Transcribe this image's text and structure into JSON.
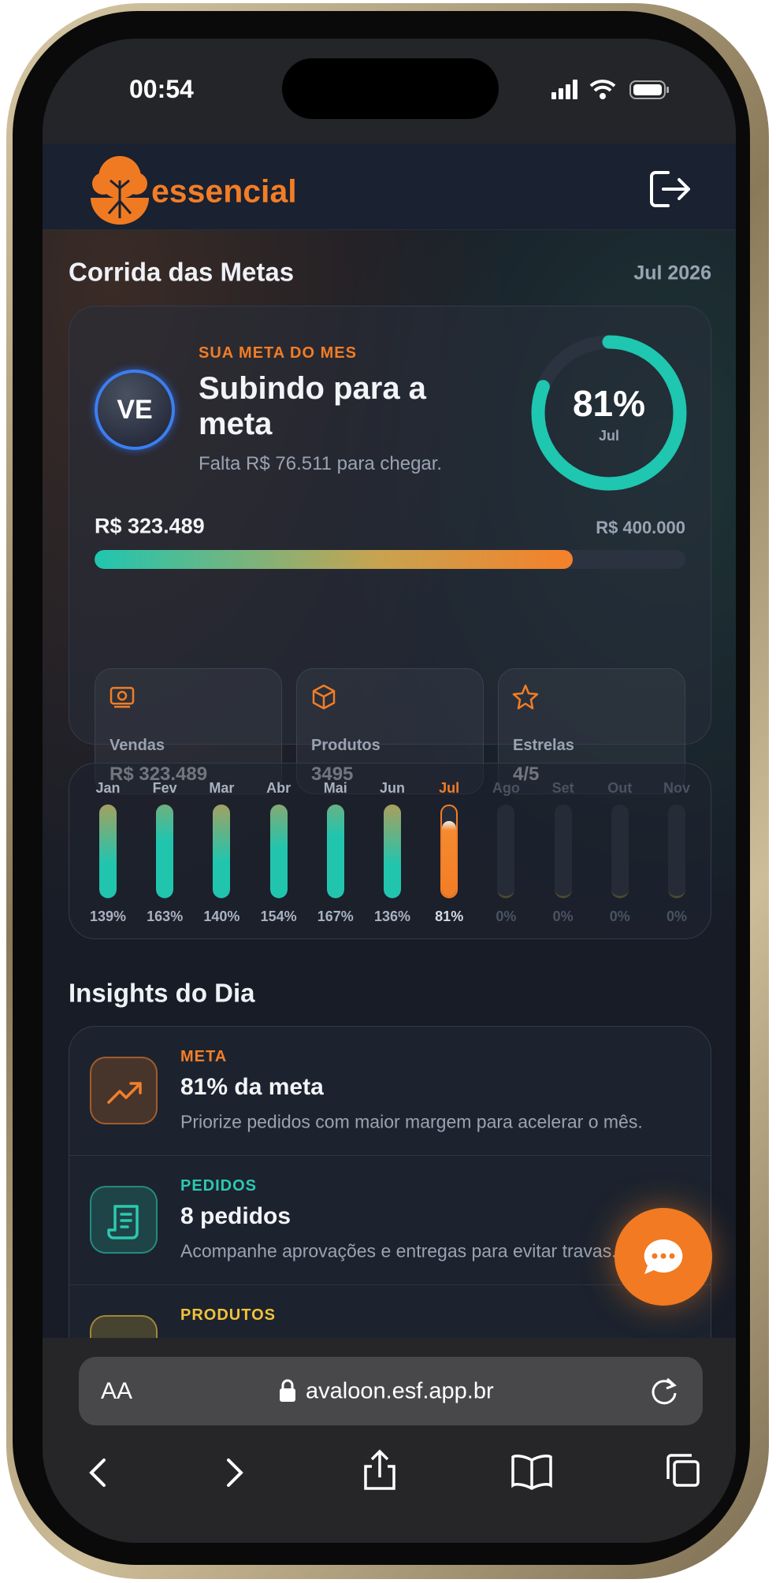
{
  "status_bar": {
    "time": "00:54"
  },
  "header": {
    "brand": "essencial"
  },
  "section": {
    "title": "Corrida das Metas",
    "period": "Jul 2026"
  },
  "goal_card": {
    "avatar": "VE",
    "eyebrow": "SUA META DO MES",
    "title": "Subindo para a meta",
    "subtitle": "Falta R$ 76.511 para chegar.",
    "ring": {
      "value": 81,
      "label": "81%",
      "caption": "Jul"
    },
    "progress": {
      "value": 323489,
      "value_label": "R$ 323.489",
      "target": 400000,
      "target_label": "R$ 400.000"
    },
    "stats": [
      {
        "label": "Vendas",
        "value": "R$ 323.489"
      },
      {
        "label": "Produtos",
        "value": "3495"
      },
      {
        "label": "Estrelas",
        "value": "4/5"
      }
    ]
  },
  "months": {
    "categories": [
      "Jan",
      "Fev",
      "Mar",
      "Abr",
      "Mai",
      "Jun",
      "Jul",
      "Ago",
      "Set",
      "Out",
      "Nov"
    ],
    "values": [
      139,
      163,
      140,
      154,
      167,
      136,
      81,
      0,
      0,
      0,
      0
    ],
    "value_labels": [
      "139%",
      "163%",
      "140%",
      "154%",
      "167%",
      "136%",
      "81%",
      "0%",
      "0%",
      "0%",
      "0%"
    ],
    "current": "Jul"
  },
  "insights": {
    "title": "Insights do Dia",
    "items": [
      {
        "tag": "META",
        "color": "#f47f2a",
        "title": "81% da meta",
        "text": "Priorize pedidos com maior margem para acelerar o mês."
      },
      {
        "tag": "PEDIDOS",
        "color": "#2cc9b1",
        "title": "8 pedidos",
        "text": "Acompanhe aprovações e entregas para evitar travas."
      },
      {
        "tag": "PRODUTOS",
        "color": "#f2c23a"
      }
    ]
  },
  "browser": {
    "text_size": "AA",
    "url": "avaloon.esf.app.br"
  }
}
